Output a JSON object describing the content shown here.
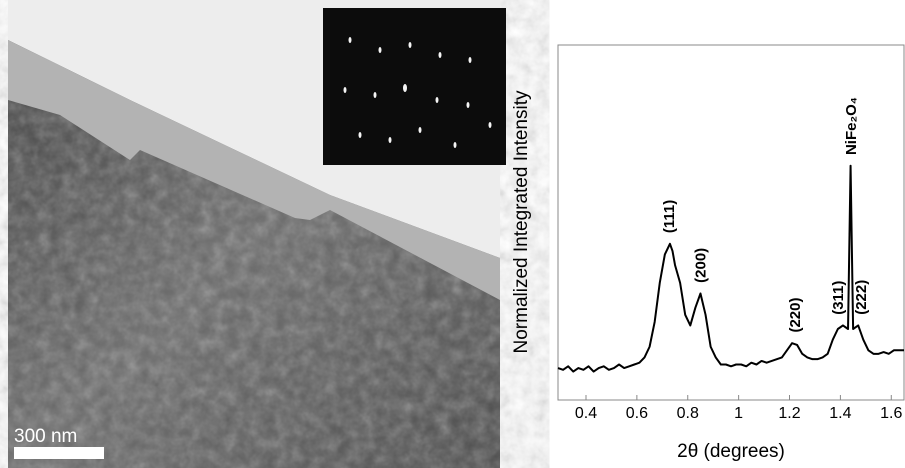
{
  "chart_data": {
    "type": "line",
    "xlabel": "2θ (degrees)",
    "ylabel": "Normalized Integrated Intensity",
    "scale_bar": "300 nm",
    "xlim": [
      0.29,
      1.65
    ],
    "ylim": [
      0,
      1
    ],
    "xticks": [
      0.4,
      0.6,
      0.8,
      1,
      1.2,
      1.4,
      1.6
    ],
    "series": [
      {
        "color": "#000000",
        "x": [
          0.29,
          0.31,
          0.33,
          0.35,
          0.37,
          0.39,
          0.41,
          0.43,
          0.45,
          0.47,
          0.49,
          0.51,
          0.53,
          0.55,
          0.57,
          0.59,
          0.61,
          0.63,
          0.65,
          0.67,
          0.69,
          0.71,
          0.73,
          0.74,
          0.75,
          0.77,
          0.79,
          0.81,
          0.83,
          0.85,
          0.87,
          0.89,
          0.91,
          0.93,
          0.95,
          0.97,
          0.99,
          1.01,
          1.03,
          1.05,
          1.07,
          1.09,
          1.11,
          1.13,
          1.15,
          1.17,
          1.19,
          1.21,
          1.23,
          1.25,
          1.27,
          1.29,
          1.31,
          1.33,
          1.35,
          1.37,
          1.39,
          1.41,
          1.43,
          1.44,
          1.45,
          1.47,
          1.49,
          1.51,
          1.53,
          1.55,
          1.57,
          1.59,
          1.61,
          1.63,
          1.65
        ],
        "values": [
          0.09,
          0.085,
          0.095,
          0.08,
          0.09,
          0.085,
          0.095,
          0.08,
          0.09,
          0.095,
          0.085,
          0.09,
          0.1,
          0.09,
          0.095,
          0.1,
          0.105,
          0.12,
          0.15,
          0.22,
          0.33,
          0.41,
          0.44,
          0.42,
          0.38,
          0.33,
          0.24,
          0.21,
          0.26,
          0.3,
          0.24,
          0.15,
          0.12,
          0.1,
          0.1,
          0.095,
          0.1,
          0.1,
          0.095,
          0.105,
          0.1,
          0.11,
          0.105,
          0.11,
          0.115,
          0.12,
          0.14,
          0.16,
          0.155,
          0.13,
          0.12,
          0.115,
          0.115,
          0.12,
          0.13,
          0.17,
          0.2,
          0.21,
          0.2,
          0.66,
          0.2,
          0.21,
          0.17,
          0.14,
          0.13,
          0.13,
          0.135,
          0.13,
          0.14,
          0.14,
          0.14
        ]
      }
    ],
    "annotations": [
      {
        "text": "(111)",
        "x": 0.73,
        "y": 0.47
      },
      {
        "text": "(200)",
        "x": 0.855,
        "y": 0.33
      },
      {
        "text": "(220)",
        "x": 1.225,
        "y": 0.19
      },
      {
        "text": "(311)",
        "x": 1.395,
        "y": 0.24
      },
      {
        "text": "NiFe₂O₄",
        "x": 1.445,
        "y": 0.69
      },
      {
        "text": "(222)",
        "x": 1.485,
        "y": 0.24
      }
    ]
  }
}
